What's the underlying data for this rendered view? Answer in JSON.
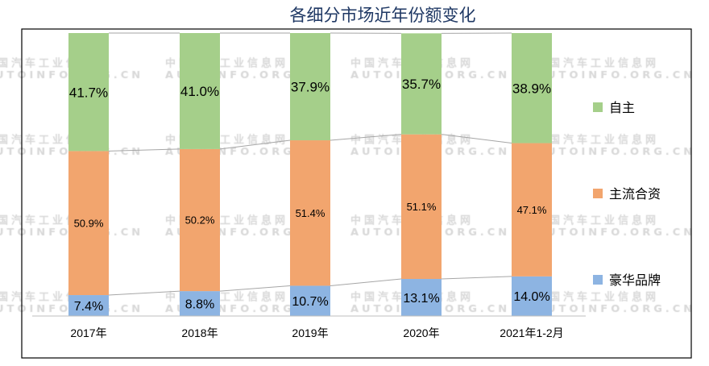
{
  "chart_data": {
    "type": "bar",
    "stacked": "percent",
    "title": "各细分市场近年份额变化",
    "categories": [
      "2017年",
      "2018年",
      "2019年",
      "2020年",
      "2021年1-2月"
    ],
    "series": [
      {
        "name": "豪华品牌",
        "color": "#8db4e2",
        "values": [
          7.4,
          8.8,
          10.7,
          13.1,
          14.0
        ],
        "labels": [
          "7.4%",
          "8.8%",
          "10.7%",
          "13.1%",
          "14.0%"
        ]
      },
      {
        "name": "主流合资",
        "color": "#f2a56e",
        "values": [
          50.9,
          50.2,
          51.4,
          51.1,
          47.1
        ],
        "labels": [
          "50.9%",
          "50.2%",
          "51.4%",
          "51.1%",
          "47.1%"
        ]
      },
      {
        "name": "自主",
        "color": "#a5cf8a",
        "values": [
          41.7,
          41.0,
          37.9,
          35.7,
          38.9
        ],
        "labels": [
          "41.7%",
          "41.0%",
          "37.9%",
          "35.7%",
          "38.9%"
        ]
      }
    ],
    "ylim": [
      0,
      100
    ],
    "series_lines": true,
    "grid": false,
    "legend_position": "right",
    "legend_order": [
      "自主",
      "主流合资",
      "豪华品牌"
    ]
  },
  "watermark": {
    "line1": "中国汽车工业信息网",
    "line2": "AUTOINFO.ORG.CN"
  }
}
